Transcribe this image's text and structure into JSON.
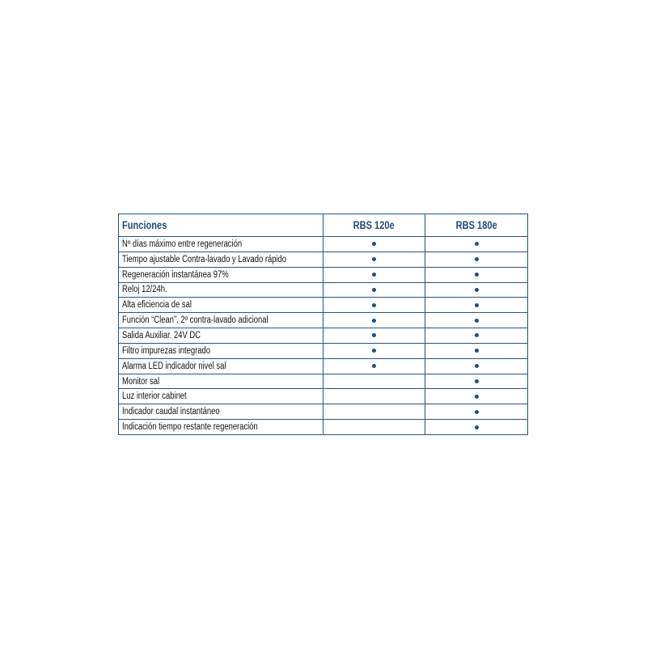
{
  "header": {
    "col1": "Funciones",
    "col2": "RBS 120e",
    "col3": "RBS 180e"
  },
  "dot_color": "#1f4e7a",
  "rows": [
    {
      "label": "Nº días máximo entre regeneración",
      "rbs120e": true,
      "rbs180e": true
    },
    {
      "label": "Tiempo ajustable Contra-lavado y Lavado rápido",
      "rbs120e": true,
      "rbs180e": true
    },
    {
      "label": "Regeneración instantánea 97%",
      "rbs120e": true,
      "rbs180e": true
    },
    {
      "label": "Reloj 12/24h.",
      "rbs120e": true,
      "rbs180e": true
    },
    {
      "label": "Alta eficiencia de sal",
      "rbs120e": true,
      "rbs180e": true
    },
    {
      "label": "Función “Clean”. 2º contra-lavado adicional",
      "rbs120e": true,
      "rbs180e": true
    },
    {
      "label": "Salida Auxiliar. 24V DC",
      "rbs120e": true,
      "rbs180e": true
    },
    {
      "label": "Filtro impurezas integrado",
      "rbs120e": true,
      "rbs180e": true
    },
    {
      "label": "Alarma LED indicador nivel sal",
      "rbs120e": true,
      "rbs180e": true
    },
    {
      "label": "Monitor sal",
      "rbs120e": false,
      "rbs180e": true
    },
    {
      "label": "Luz interior cabinet",
      "rbs120e": false,
      "rbs180e": true
    },
    {
      "label": "Indicador caudal instantáneo",
      "rbs120e": false,
      "rbs180e": true
    },
    {
      "label": "Indicación tiempo restante regeneración",
      "rbs120e": false,
      "rbs180e": true
    }
  ]
}
